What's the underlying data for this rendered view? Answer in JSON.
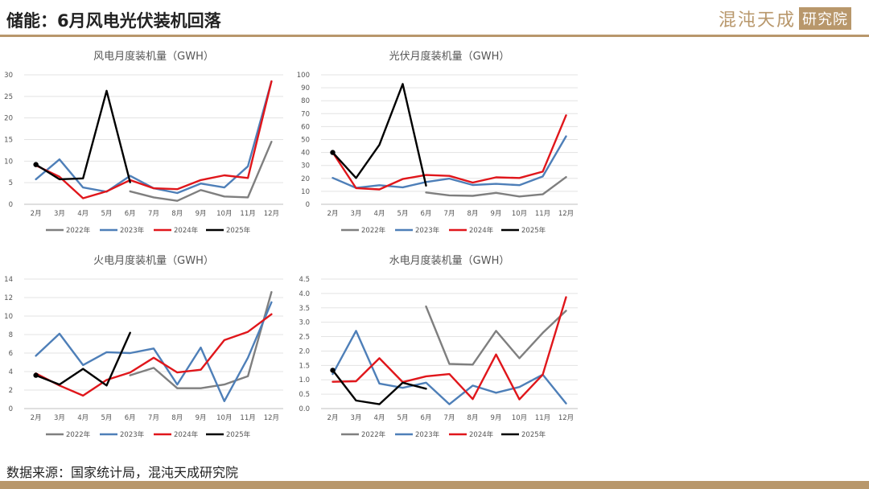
{
  "header": {
    "title": "储能：6月风电光伏装机回落",
    "brand_name": "混沌天成",
    "brand_box": "研究院"
  },
  "source_note": "数据来源：国家统计局，混沌天成研究院",
  "colors": {
    "2022年": "#7f7f7f",
    "2023年": "#4e7fb8",
    "2024年": "#e0161b",
    "2025年": "#000000",
    "brand": "#b8976b"
  },
  "chart_data": [
    {
      "type": "line",
      "title": "风电月度装机量（GWH）",
      "categories": [
        "2月",
        "3月",
        "4月",
        "5月",
        "6月",
        "7月",
        "8月",
        "9月",
        "10月",
        "11月",
        "12月"
      ],
      "ylim": [
        0,
        30
      ],
      "yticks": [
        0,
        5,
        10,
        15,
        20,
        25,
        30
      ],
      "grid": true,
      "legend_position": "bottom",
      "series": [
        {
          "name": "2022年",
          "values": [
            null,
            null,
            null,
            null,
            3.0,
            1.6,
            0.8,
            3.3,
            1.8,
            1.6,
            14.5
          ]
        },
        {
          "name": "2023年",
          "values": [
            5.8,
            10.4,
            3.9,
            2.9,
            6.6,
            3.7,
            2.6,
            4.8,
            3.9,
            8.8,
            28.5
          ]
        },
        {
          "name": "2024年",
          "values": [
            9.0,
            6.4,
            1.4,
            3.0,
            5.6,
            3.7,
            3.5,
            5.6,
            6.7,
            6.1,
            28.5
          ]
        },
        {
          "name": "2025年",
          "values": [
            9.2,
            5.8,
            6.0,
            26.3,
            5.1,
            null,
            null,
            null,
            null,
            null,
            null
          ]
        }
      ]
    },
    {
      "type": "line",
      "title": "光伏月度装机量（GWH）",
      "categories": [
        "2月",
        "3月",
        "4月",
        "5月",
        "6月",
        "7月",
        "8月",
        "9月",
        "10月",
        "11月",
        "12月"
      ],
      "ylim": [
        0,
        100
      ],
      "yticks": [
        0,
        10,
        20,
        30,
        40,
        50,
        60,
        70,
        80,
        90,
        100
      ],
      "grid": true,
      "legend_position": "bottom",
      "series": [
        {
          "name": "2022年",
          "values": [
            null,
            null,
            null,
            null,
            9.1,
            6.9,
            6.5,
            8.8,
            6.0,
            7.7,
            21.0
          ]
        },
        {
          "name": "2023年",
          "values": [
            20.4,
            12.7,
            14.7,
            13.1,
            17.2,
            19.8,
            14.9,
            15.8,
            14.8,
            21.5,
            52.5
          ]
        },
        {
          "name": "2024年",
          "values": [
            40.0,
            12.5,
            11.5,
            19.5,
            22.6,
            21.9,
            16.8,
            20.8,
            20.3,
            25.2,
            68.7
          ]
        },
        {
          "name": "2025年",
          "values": [
            40.0,
            20.3,
            45.9,
            92.9,
            14.4,
            null,
            null,
            null,
            null,
            null,
            null
          ]
        }
      ]
    },
    {
      "type": "line",
      "title": "火电月度装机量（GWH）",
      "categories": [
        "2月",
        "3月",
        "4月",
        "5月",
        "6月",
        "7月",
        "8月",
        "9月",
        "10月",
        "11月",
        "12月"
      ],
      "ylim": [
        0,
        14
      ],
      "yticks": [
        0,
        2,
        4,
        6,
        8,
        10,
        12,
        14
      ],
      "grid": true,
      "legend_position": "bottom",
      "series": [
        {
          "name": "2022年",
          "values": [
            null,
            null,
            null,
            null,
            3.6,
            4.4,
            2.2,
            2.2,
            2.6,
            3.5,
            12.6
          ]
        },
        {
          "name": "2023年",
          "values": [
            5.7,
            8.1,
            4.7,
            6.1,
            6.0,
            6.5,
            2.6,
            6.6,
            0.8,
            5.5,
            11.5
          ]
        },
        {
          "name": "2024年",
          "values": [
            3.8,
            2.5,
            1.4,
            3.1,
            3.9,
            5.5,
            3.9,
            4.2,
            7.4,
            8.3,
            10.2
          ]
        },
        {
          "name": "2025年",
          "values": [
            3.6,
            2.6,
            4.3,
            2.5,
            8.2,
            null,
            null,
            null,
            null,
            null,
            null
          ]
        }
      ]
    },
    {
      "type": "line",
      "title": "水电月度装机量（GWH）",
      "categories": [
        "2月",
        "3月",
        "4月",
        "5月",
        "6月",
        "7月",
        "8月",
        "9月",
        "10月",
        "11月",
        "12月"
      ],
      "ylim": [
        0,
        4.5
      ],
      "yticks": [
        0.0,
        0.5,
        1.0,
        1.5,
        2.0,
        2.5,
        3.0,
        3.5,
        4.0,
        4.5
      ],
      "grid": true,
      "legend_position": "bottom",
      "series": [
        {
          "name": "2022年",
          "values": [
            null,
            null,
            null,
            null,
            3.55,
            1.55,
            1.53,
            2.7,
            1.75,
            2.63,
            3.4
          ]
        },
        {
          "name": "2023年",
          "values": [
            1.2,
            2.7,
            0.87,
            0.72,
            0.9,
            0.15,
            0.8,
            0.55,
            0.75,
            1.18,
            0.18
          ]
        },
        {
          "name": "2024年",
          "values": [
            0.93,
            0.95,
            1.75,
            0.92,
            1.12,
            1.2,
            0.33,
            1.88,
            0.32,
            1.18,
            3.87
          ]
        },
        {
          "name": "2025年",
          "values": [
            1.33,
            0.28,
            0.15,
            0.9,
            0.69,
            null,
            null,
            null,
            null,
            null,
            null
          ]
        }
      ]
    }
  ]
}
